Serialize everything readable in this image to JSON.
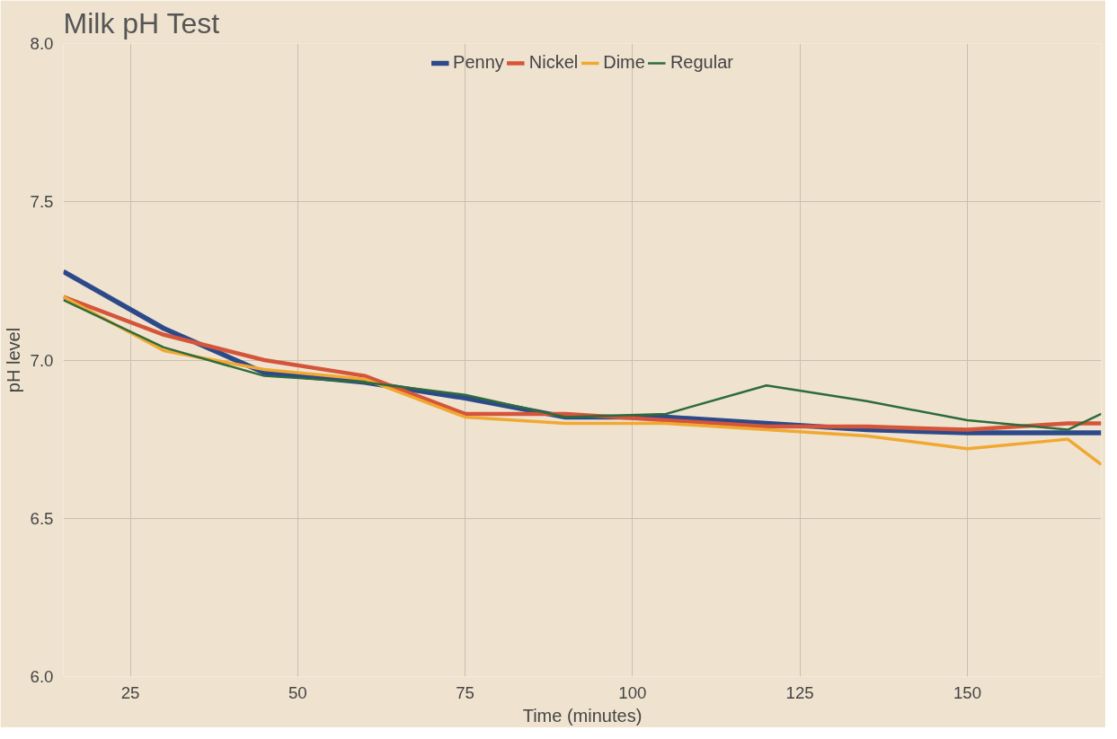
{
  "chart_data": {
    "type": "line",
    "title": "Milk pH Test",
    "xlabel": "Time (minutes)",
    "ylabel": "pH level",
    "x": [
      15,
      30,
      45,
      60,
      75,
      90,
      105,
      120,
      135,
      150,
      165,
      170
    ],
    "series": [
      {
        "name": "Penny",
        "color": "#2c4a8a",
        "values": [
          7.28,
          7.1,
          6.96,
          6.93,
          6.88,
          6.82,
          6.82,
          6.8,
          6.78,
          6.77,
          6.77,
          6.77
        ]
      },
      {
        "name": "Nickel",
        "color": "#d4553a",
        "values": [
          7.2,
          7.08,
          7.0,
          6.95,
          6.83,
          6.83,
          6.81,
          6.79,
          6.79,
          6.78,
          6.8,
          6.8
        ]
      },
      {
        "name": "Dime",
        "color": "#f0a830",
        "values": [
          7.2,
          7.03,
          6.97,
          6.94,
          6.82,
          6.8,
          6.8,
          6.78,
          6.76,
          6.72,
          6.75,
          6.67
        ]
      },
      {
        "name": "Regular",
        "color": "#2e6b3a",
        "values": [
          7.19,
          7.04,
          6.95,
          6.93,
          6.89,
          6.82,
          6.83,
          6.92,
          6.87,
          6.81,
          6.78,
          6.83
        ]
      }
    ],
    "xlim": [
      15,
      170
    ],
    "ylim": [
      6.0,
      8.0
    ],
    "xticks": [
      25,
      50,
      75,
      100,
      125,
      150
    ],
    "yticks": [
      {
        "value": 6.0,
        "label": "6.0"
      },
      {
        "value": 6.5,
        "label": "6.5"
      },
      {
        "value": 7.0,
        "label": "7.0"
      },
      {
        "value": 7.5,
        "label": "7.5"
      },
      {
        "value": 8.0,
        "label": "8.0"
      }
    ],
    "grid": true,
    "legend": "top",
    "line_style": "solid"
  }
}
